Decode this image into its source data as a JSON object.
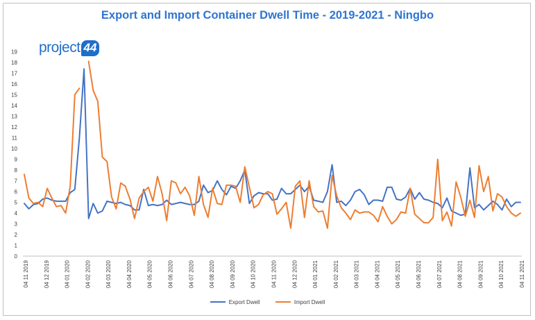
{
  "chart_data": {
    "type": "line",
    "title": "Export and Import Container Dwell Time - 2019-2021 - Ningbo",
    "logo_text": "project",
    "logo_badge": "44",
    "ylim": [
      0,
      20
    ],
    "yticks": [
      0,
      1,
      2,
      3,
      4,
      5,
      6,
      7,
      8,
      9,
      10,
      11,
      12,
      13,
      14,
      15,
      16,
      17,
      18,
      19
    ],
    "xlabels": [
      "04 11 2019",
      "04 12 2019",
      "04 01 2020",
      "04 02 2020",
      "04 03 2020",
      "04 04 2020",
      "04 05 2020",
      "04 06 2020",
      "04 07 2020",
      "04 08 2020",
      "04 09 2020",
      "04 10 2020",
      "04 11 2020",
      "04 12 2020",
      "04 01 2021",
      "04 02 2021",
      "04 03 2021",
      "04 04 2021",
      "04 05 2021",
      "04 06 2021",
      "04 07 2021",
      "04 08 2021",
      "04 09 2021",
      "04 10 2021",
      "04 11 2021"
    ],
    "grid": false,
    "legend_position": "bottom",
    "series": [
      {
        "name": "Export Dwell",
        "color": "#4472c4",
        "values": [
          4.9,
          4.4,
          4.8,
          4.9,
          5.3,
          5.4,
          5.2,
          5.1,
          5.1,
          5.1,
          5.9,
          6.2,
          11.0,
          17.4,
          3.5,
          4.9,
          4.0,
          4.2,
          5.1,
          5.0,
          4.9,
          5.0,
          4.8,
          4.7,
          4.3,
          4.3,
          6.2,
          4.7,
          4.8,
          4.7,
          4.8,
          5.2,
          4.8,
          4.9,
          5.0,
          4.9,
          4.8,
          4.8,
          5.1,
          6.6,
          5.9,
          6.1,
          7.0,
          6.2,
          5.7,
          6.5,
          6.3,
          7.0,
          8.0,
          4.9,
          5.6,
          5.9,
          5.8,
          5.8,
          5.2,
          5.3,
          6.3,
          5.8,
          5.8,
          6.2,
          6.6,
          6.0,
          6.5,
          5.2,
          5.1,
          5.0,
          6.0,
          8.5,
          5.0,
          5.1,
          4.7,
          5.2,
          6.0,
          6.2,
          5.7,
          4.8,
          5.2,
          5.2,
          5.1,
          6.4,
          6.4,
          5.3,
          5.2,
          5.5,
          6.3,
          5.3,
          5.9,
          5.3,
          5.2,
          5.0,
          4.9,
          4.5,
          5.4,
          4.2,
          4.0,
          3.8,
          3.9,
          8.2,
          4.5,
          4.8,
          4.3,
          4.7,
          5.1,
          4.8,
          4.3,
          5.3,
          4.6,
          5.0,
          5.0
        ]
      },
      {
        "name": "Import Dwell",
        "color": "#ed7d31",
        "values": [
          7.6,
          5.4,
          4.9,
          5.0,
          4.6,
          6.3,
          5.4,
          4.6,
          4.7,
          4.0,
          6.5,
          15.0,
          15.6,
          null,
          18.1,
          15.4,
          14.4,
          9.2,
          8.8,
          5.5,
          4.4,
          6.8,
          6.5,
          5.3,
          3.5,
          5.4,
          6.0,
          6.4,
          5.1,
          7.4,
          5.8,
          3.3,
          7.0,
          6.8,
          5.8,
          6.4,
          5.6,
          3.8,
          7.4,
          4.8,
          3.6,
          6.3,
          4.9,
          4.8,
          6.6,
          6.6,
          6.5,
          5.0,
          8.3,
          6.4,
          4.5,
          4.8,
          5.7,
          6.0,
          5.8,
          3.9,
          4.4,
          5.0,
          2.6,
          6.5,
          7.0,
          3.6,
          7.0,
          4.6,
          4.1,
          4.2,
          2.6,
          7.5,
          5.6,
          4.5,
          4.0,
          3.4,
          4.3,
          4.0,
          4.1,
          4.1,
          3.8,
          3.2,
          4.6,
          3.7,
          3.0,
          3.4,
          4.1,
          4.0,
          6.3,
          3.9,
          3.5,
          3.1,
          3.1,
          3.6,
          9.0,
          3.3,
          4.1,
          2.8,
          6.9,
          5.5,
          3.7,
          5.2,
          3.6,
          8.4,
          6.0,
          7.4,
          4.2,
          5.8,
          5.5,
          4.6,
          4.0,
          3.7,
          4.0
        ]
      }
    ]
  }
}
